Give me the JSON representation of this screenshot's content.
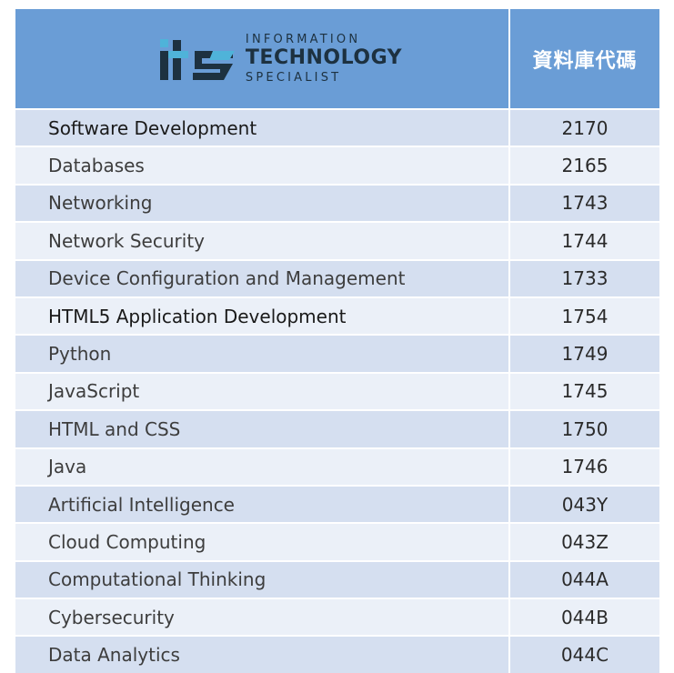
{
  "header": {
    "logo_line1": "INFORMATION",
    "logo_line2": "TECHNOLOGY",
    "logo_line3": "SPECIALIST",
    "code_column": "資料庫代碼"
  },
  "colors": {
    "header_bg": "#6a9dd6",
    "row_odd": "#d5dff0",
    "row_even": "#ebf0f8",
    "logo_dark": "#1d3140",
    "logo_accent": "#4fb3d9"
  },
  "rows": [
    {
      "name": "Software Development",
      "code": "2170"
    },
    {
      "name": "Databases",
      "code": "2165"
    },
    {
      "name": "Networking",
      "code": "1743"
    },
    {
      "name": "Network Security",
      "code": "1744"
    },
    {
      "name": "Device Configuration and Management",
      "code": "1733"
    },
    {
      "name": "HTML5 Application Development",
      "code": "1754"
    },
    {
      "name": "Python",
      "code": "1749"
    },
    {
      "name": "JavaScript",
      "code": "1745"
    },
    {
      "name": "HTML and CSS",
      "code": "1750"
    },
    {
      "name": "Java",
      "code": "1746"
    },
    {
      "name": "Artificial Intelligence",
      "code": "043Y"
    },
    {
      "name": "Cloud Computing",
      "code": "043Z"
    },
    {
      "name": "Computational Thinking",
      "code": "044A"
    },
    {
      "name": "Cybersecurity",
      "code": "044B"
    },
    {
      "name": "Data Analytics",
      "code": "044C"
    }
  ]
}
